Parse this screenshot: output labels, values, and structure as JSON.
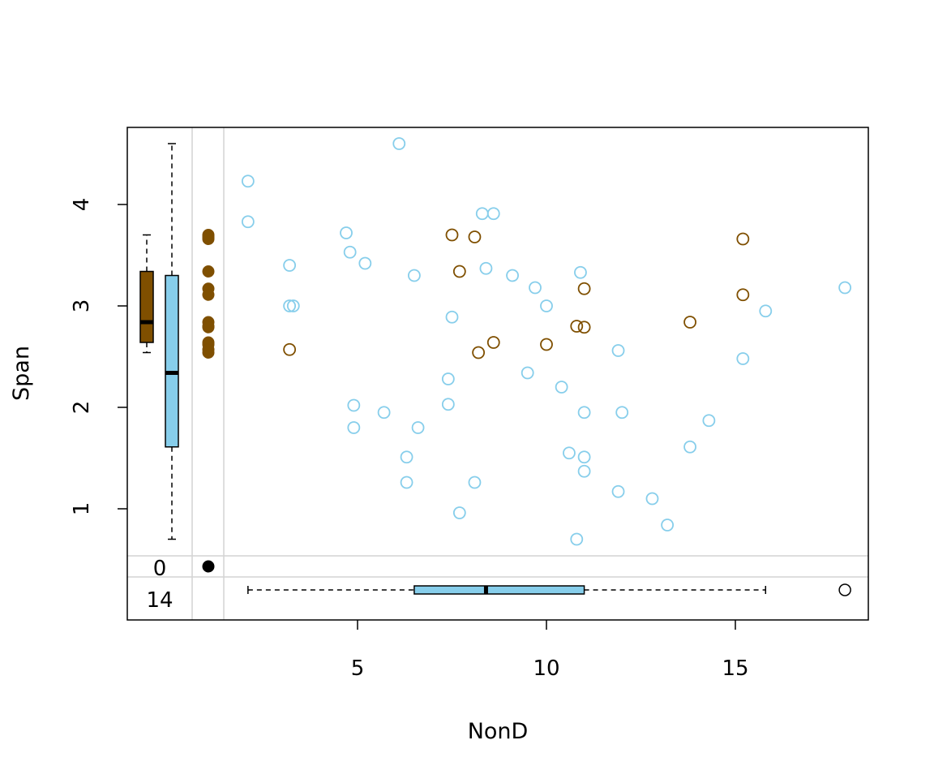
{
  "chart_data": {
    "type": "scatter",
    "title": "",
    "xlabel": "NonD",
    "ylabel": "Span",
    "xlim": [
      0.5,
      18
    ],
    "ylim": [
      0.5,
      4.6
    ],
    "x_ticks": [
      5,
      10,
      15
    ],
    "y_ticks": [
      1,
      2,
      3,
      4
    ],
    "colors": {
      "missing_y_points": "#7f4f00",
      "complete_points": "#87ceeb",
      "missing_count": "#ffa500",
      "reference_lines": "#d3d3d3",
      "axes": "#000000"
    },
    "series": [
      {
        "role": "complete",
        "points": [
          [
            2.1,
            4.23
          ],
          [
            6.1,
            4.6
          ],
          [
            2.1,
            3.83
          ],
          [
            4.7,
            3.72
          ],
          [
            4.8,
            3.53
          ],
          [
            8.3,
            3.91
          ],
          [
            8.6,
            3.91
          ],
          [
            3.2,
            3.4
          ],
          [
            5.2,
            3.42
          ],
          [
            6.5,
            3.3
          ],
          [
            8.4,
            3.37
          ],
          [
            9.1,
            3.3
          ],
          [
            10.9,
            3.33
          ],
          [
            9.7,
            3.18
          ],
          [
            10.0,
            3.0
          ],
          [
            3.2,
            3.0
          ],
          [
            3.3,
            3.0
          ],
          [
            7.5,
            2.89
          ],
          [
            17.9,
            3.18
          ],
          [
            15.8,
            2.95
          ],
          [
            11.9,
            2.56
          ],
          [
            15.2,
            2.48
          ],
          [
            9.5,
            2.34
          ],
          [
            7.4,
            2.28
          ],
          [
            10.4,
            2.2
          ],
          [
            4.9,
            2.02
          ],
          [
            7.4,
            2.03
          ],
          [
            5.7,
            1.95
          ],
          [
            11.0,
            1.95
          ],
          [
            12.0,
            1.95
          ],
          [
            14.3,
            1.87
          ],
          [
            4.9,
            1.8
          ],
          [
            6.6,
            1.8
          ],
          [
            13.8,
            1.61
          ],
          [
            10.6,
            1.55
          ],
          [
            6.3,
            1.51
          ],
          [
            11.0,
            1.51
          ],
          [
            11.0,
            1.37
          ],
          [
            6.3,
            1.26
          ],
          [
            8.1,
            1.26
          ],
          [
            11.9,
            1.17
          ],
          [
            12.8,
            1.1
          ],
          [
            13.2,
            0.84
          ],
          [
            7.7,
            0.96
          ],
          [
            10.8,
            0.7
          ]
        ]
      },
      {
        "role": "missing",
        "points": [
          [
            7.5,
            3.7
          ],
          [
            8.1,
            3.68
          ],
          [
            15.2,
            3.66
          ],
          [
            7.7,
            3.34
          ],
          [
            11.0,
            3.17
          ],
          [
            15.2,
            3.11
          ],
          [
            13.8,
            2.84
          ],
          [
            10.8,
            2.8
          ],
          [
            11.0,
            2.79
          ],
          [
            8.6,
            2.64
          ],
          [
            10.0,
            2.62
          ],
          [
            3.2,
            2.57
          ],
          [
            8.2,
            2.54
          ]
        ]
      }
    ],
    "margin_y_missing_x": [
      3.7,
      3.68,
      3.66,
      3.34,
      3.17,
      3.11,
      2.84,
      2.8,
      2.79,
      2.64,
      2.62,
      2.57,
      2.54
    ],
    "boxplots": {
      "y_missing": {
        "min": 2.54,
        "q1": 2.64,
        "median": 2.84,
        "q3": 3.34,
        "max": 3.7
      },
      "y_complete": {
        "min": 0.7,
        "q1": 1.61,
        "median": 2.34,
        "q3": 3.3,
        "max": 4.6
      },
      "x_complete": {
        "min": 2.1,
        "q1": 6.5,
        "median": 8.4,
        "q3": 11.0,
        "max": 15.8,
        "outliers": [
          17.9
        ]
      }
    },
    "missing_counts": {
      "x_label": "0",
      "y_label": "14"
    }
  }
}
